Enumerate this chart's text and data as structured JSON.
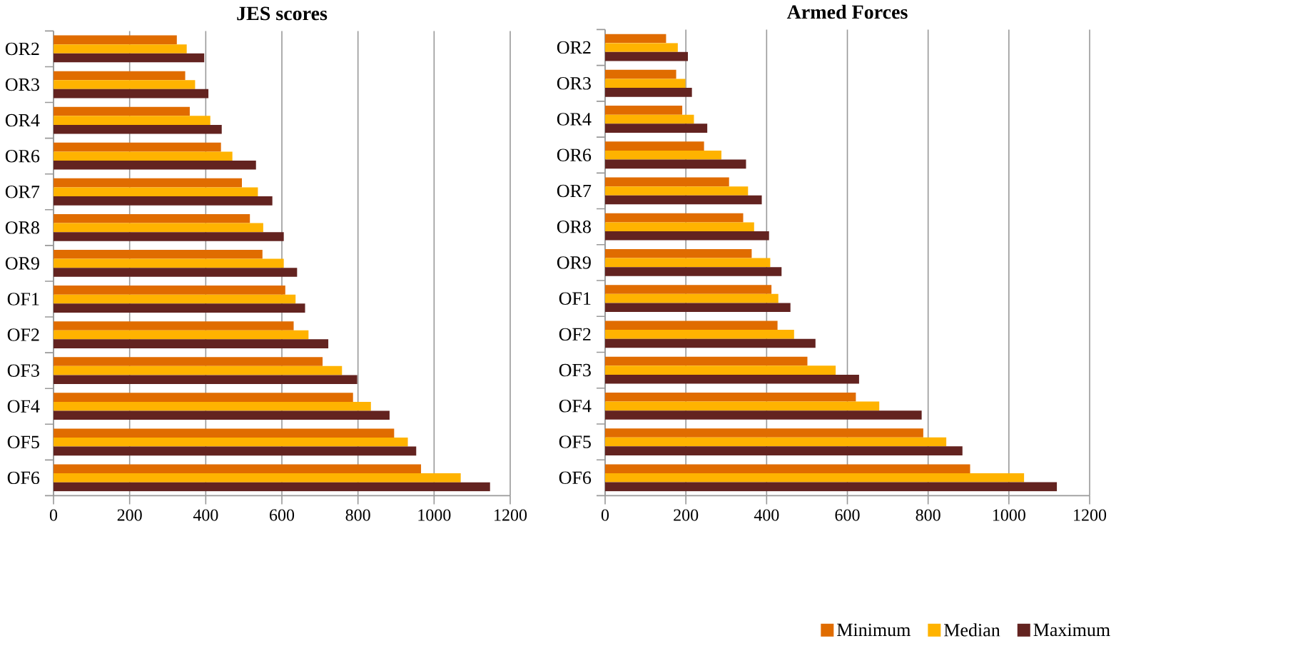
{
  "chart_data": [
    {
      "type": "bar",
      "orientation": "horizontal",
      "title": "JES scores",
      "categories": [
        "OR2",
        "OR3",
        "OR4",
        "OR6",
        "OR7",
        "OR8",
        "OR9",
        "OF1",
        "OF2",
        "OF3",
        "OF4",
        "OF5",
        "OF6"
      ],
      "series": [
        {
          "color": "#e06c00",
          "values": [
            324,
            346,
            358,
            440,
            495,
            516,
            549,
            609,
            631,
            707,
            787,
            895,
            966
          ]
        },
        {
          "color": "#ffb300",
          "values": [
            350,
            372,
            412,
            470,
            537,
            551,
            605,
            636,
            670,
            758,
            834,
            931,
            1070
          ]
        },
        {
          "color": "#632320",
          "values": [
            396,
            407,
            442,
            532,
            575,
            605,
            640,
            661,
            722,
            798,
            883,
            953,
            1147
          ]
        }
      ],
      "xlim": [
        0,
        1200
      ],
      "xticks": [
        0,
        200,
        400,
        600,
        800,
        1000,
        1200
      ],
      "grid": "x"
    },
    {
      "type": "bar",
      "orientation": "horizontal",
      "title": "Armed Forces",
      "categories": [
        "OR2",
        "OR3",
        "OR4",
        "OR6",
        "OR7",
        "OR8",
        "OR9",
        "OF1",
        "OF2",
        "OF3",
        "OF4",
        "OF5",
        "OF6"
      ],
      "series": [
        {
          "name": "Minimum",
          "color": "#e06c00",
          "values": [
            151,
            176,
            191,
            245,
            307,
            342,
            363,
            412,
            427,
            501,
            621,
            788,
            904
          ]
        },
        {
          "name": "Median",
          "color": "#ffb300",
          "values": [
            180,
            199,
            220,
            288,
            354,
            369,
            409,
            429,
            468,
            571,
            679,
            845,
            1038
          ]
        },
        {
          "name": "Maximum",
          "color": "#632320",
          "values": [
            205,
            215,
            253,
            349,
            388,
            406,
            437,
            459,
            521,
            629,
            784,
            885,
            1119
          ]
        }
      ],
      "xlim": [
        0,
        1200
      ],
      "xticks": [
        0,
        200,
        400,
        600,
        800,
        1000,
        1200
      ],
      "grid": "x",
      "legend": "bottom"
    }
  ]
}
